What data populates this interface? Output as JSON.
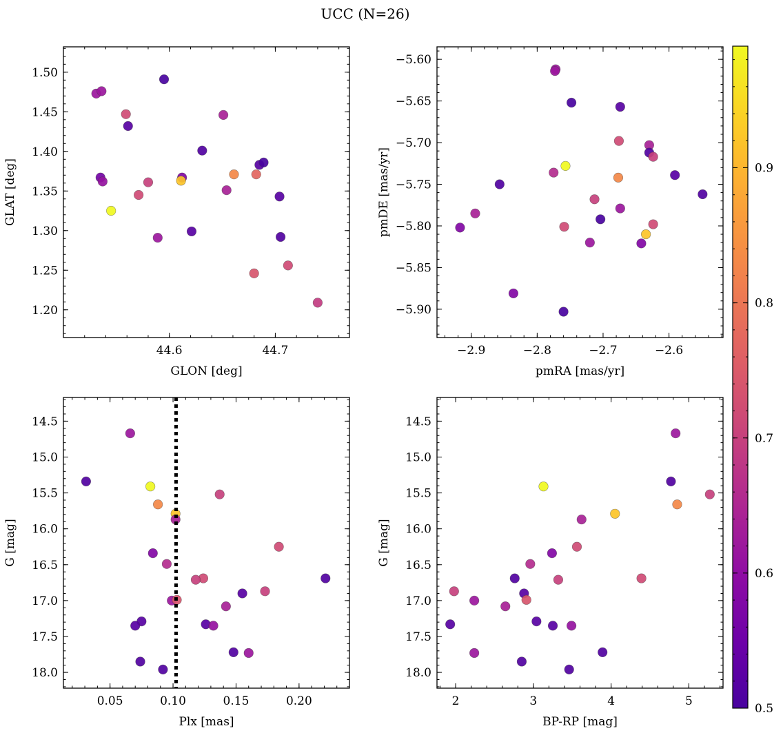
{
  "title": "UCC (N=26)",
  "colorbar": {
    "min": 0.5,
    "max": 0.99,
    "ticks": [
      0.5,
      0.6,
      0.7,
      0.8,
      0.9
    ],
    "tick_labels": [
      "0.5",
      "0.6",
      "0.7",
      "0.8",
      "0.9"
    ],
    "colormap": "plasma"
  },
  "chart_data": [
    {
      "id": "glon_glat",
      "type": "scatter",
      "xlabel": "GLON [deg]",
      "ylabel": "GLAT [deg]",
      "xlim": [
        44.5,
        44.77
      ],
      "ylim": [
        1.165,
        1.532
      ],
      "y_inverted": false,
      "xticks": [
        44.6,
        44.7
      ],
      "xtick_labels": [
        "44.6",
        "44.7"
      ],
      "yticks": [
        1.2,
        1.25,
        1.3,
        1.35,
        1.4,
        1.45,
        1.5
      ],
      "ytick_labels": [
        "1.20",
        "1.25",
        "1.30",
        "1.35",
        "1.40",
        "1.45",
        "1.50"
      ],
      "points": [
        {
          "x": 44.531,
          "y": 1.473,
          "c": 0.62
        },
        {
          "x": 44.536,
          "y": 1.476,
          "c": 0.62
        },
        {
          "x": 44.595,
          "y": 1.491,
          "c": 0.5
        },
        {
          "x": 44.559,
          "y": 1.447,
          "c": 0.72
        },
        {
          "x": 44.561,
          "y": 1.432,
          "c": 0.52
        },
        {
          "x": 44.651,
          "y": 1.446,
          "c": 0.64
        },
        {
          "x": 44.631,
          "y": 1.401,
          "c": 0.51
        },
        {
          "x": 44.535,
          "y": 1.367,
          "c": 0.56
        },
        {
          "x": 44.537,
          "y": 1.362,
          "c": 0.61
        },
        {
          "x": 44.545,
          "y": 1.325,
          "c": 0.99
        },
        {
          "x": 44.58,
          "y": 1.361,
          "c": 0.7
        },
        {
          "x": 44.571,
          "y": 1.345,
          "c": 0.72
        },
        {
          "x": 44.612,
          "y": 1.367,
          "c": 0.58
        },
        {
          "x": 44.611,
          "y": 1.363,
          "c": 0.92
        },
        {
          "x": 44.654,
          "y": 1.351,
          "c": 0.64
        },
        {
          "x": 44.661,
          "y": 1.371,
          "c": 0.83
        },
        {
          "x": 44.682,
          "y": 1.371,
          "c": 0.77
        },
        {
          "x": 44.685,
          "y": 1.383,
          "c": 0.52
        },
        {
          "x": 44.689,
          "y": 1.386,
          "c": 0.5
        },
        {
          "x": 44.704,
          "y": 1.343,
          "c": 0.52
        },
        {
          "x": 44.589,
          "y": 1.291,
          "c": 0.62
        },
        {
          "x": 44.621,
          "y": 1.299,
          "c": 0.52
        },
        {
          "x": 44.705,
          "y": 1.292,
          "c": 0.51
        },
        {
          "x": 44.68,
          "y": 1.246,
          "c": 0.74
        },
        {
          "x": 44.712,
          "y": 1.256,
          "c": 0.72
        },
        {
          "x": 44.74,
          "y": 1.209,
          "c": 0.69
        }
      ]
    },
    {
      "id": "pm",
      "type": "scatter",
      "xlabel": "pmRA [mas/yr]",
      "ylabel": "pmDE [mas/yr]",
      "xlim": [
        -2.952,
        -2.518
      ],
      "ylim": [
        -5.934,
        -5.585
      ],
      "y_inverted": false,
      "xticks": [
        -2.9,
        -2.8,
        -2.7,
        -2.6
      ],
      "xtick_labels": [
        "−2.9",
        "−2.8",
        "−2.7",
        "−2.6"
      ],
      "yticks": [
        -5.9,
        -5.85,
        -5.8,
        -5.75,
        -5.7,
        -5.65,
        -5.6
      ],
      "ytick_labels": [
        "−5.90",
        "−5.85",
        "−5.80",
        "−5.75",
        "−5.70",
        "−5.65",
        "−5.60"
      ],
      "points": [
        {
          "x": -2.772,
          "y": -5.612,
          "c": 0.62
        },
        {
          "x": -2.773,
          "y": -5.614,
          "c": 0.62
        },
        {
          "x": -2.748,
          "y": -5.652,
          "c": 0.5
        },
        {
          "x": -2.674,
          "y": -5.657,
          "c": 0.52
        },
        {
          "x": -2.676,
          "y": -5.698,
          "c": 0.72
        },
        {
          "x": -2.63,
          "y": -5.703,
          "c": 0.64
        },
        {
          "x": -2.63,
          "y": -5.712,
          "c": 0.51
        },
        {
          "x": -2.624,
          "y": -5.717,
          "c": 0.7
        },
        {
          "x": -2.757,
          "y": -5.728,
          "c": 0.99
        },
        {
          "x": -2.775,
          "y": -5.736,
          "c": 0.66
        },
        {
          "x": -2.677,
          "y": -5.742,
          "c": 0.83
        },
        {
          "x": -2.591,
          "y": -5.739,
          "c": 0.52
        },
        {
          "x": -2.857,
          "y": -5.75,
          "c": 0.51
        },
        {
          "x": -2.549,
          "y": -5.762,
          "c": 0.51
        },
        {
          "x": -2.713,
          "y": -5.768,
          "c": 0.7
        },
        {
          "x": -2.674,
          "y": -5.779,
          "c": 0.62
        },
        {
          "x": -2.894,
          "y": -5.785,
          "c": 0.64
        },
        {
          "x": -2.704,
          "y": -5.792,
          "c": 0.5
        },
        {
          "x": -2.759,
          "y": -5.801,
          "c": 0.72
        },
        {
          "x": -2.917,
          "y": -5.802,
          "c": 0.58
        },
        {
          "x": -2.624,
          "y": -5.798,
          "c": 0.72
        },
        {
          "x": -2.635,
          "y": -5.81,
          "c": 0.92
        },
        {
          "x": -2.72,
          "y": -5.82,
          "c": 0.62
        },
        {
          "x": -2.642,
          "y": -5.821,
          "c": 0.58
        },
        {
          "x": -2.836,
          "y": -5.881,
          "c": 0.58
        },
        {
          "x": -2.76,
          "y": -5.903,
          "c": 0.5
        }
      ]
    },
    {
      "id": "plx_g",
      "type": "scatter",
      "xlabel": "Plx [mas]",
      "ylabel": "G [mag]",
      "xlim": [
        0.013,
        0.24
      ],
      "ylim": [
        14.17,
        18.22
      ],
      "y_inverted": true,
      "xticks": [
        0.05,
        0.1,
        0.15,
        0.2
      ],
      "xtick_labels": [
        "0.05",
        "0.10",
        "0.15",
        "0.20"
      ],
      "yticks": [
        14.5,
        15.0,
        15.5,
        16.0,
        16.5,
        17.0,
        17.5,
        18.0
      ],
      "ytick_labels": [
        "14.5",
        "15.0",
        "15.5",
        "16.0",
        "16.5",
        "17.0",
        "17.5",
        "18.0"
      ],
      "vline": 0.1024,
      "points": [
        {
          "x": 0.066,
          "y": 14.67,
          "c": 0.62
        },
        {
          "x": 0.031,
          "y": 15.34,
          "c": 0.51
        },
        {
          "x": 0.082,
          "y": 15.41,
          "c": 0.99
        },
        {
          "x": 0.137,
          "y": 15.52,
          "c": 0.7
        },
        {
          "x": 0.088,
          "y": 15.66,
          "c": 0.83
        },
        {
          "x": 0.102,
          "y": 15.79,
          "c": 0.92
        },
        {
          "x": 0.102,
          "y": 15.87,
          "c": 0.64
        },
        {
          "x": 0.184,
          "y": 16.25,
          "c": 0.72
        },
        {
          "x": 0.084,
          "y": 16.34,
          "c": 0.58
        },
        {
          "x": 0.095,
          "y": 16.49,
          "c": 0.66
        },
        {
          "x": 0.124,
          "y": 16.69,
          "c": 0.72
        },
        {
          "x": 0.118,
          "y": 16.71,
          "c": 0.7
        },
        {
          "x": 0.221,
          "y": 16.69,
          "c": 0.51
        },
        {
          "x": 0.155,
          "y": 16.9,
          "c": 0.52
        },
        {
          "x": 0.173,
          "y": 16.87,
          "c": 0.7
        },
        {
          "x": 0.099,
          "y": 17.0,
          "c": 0.62
        },
        {
          "x": 0.103,
          "y": 16.99,
          "c": 0.74
        },
        {
          "x": 0.142,
          "y": 17.08,
          "c": 0.64
        },
        {
          "x": 0.075,
          "y": 17.29,
          "c": 0.52
        },
        {
          "x": 0.07,
          "y": 17.35,
          "c": 0.52
        },
        {
          "x": 0.126,
          "y": 17.33,
          "c": 0.52
        },
        {
          "x": 0.132,
          "y": 17.35,
          "c": 0.61
        },
        {
          "x": 0.148,
          "y": 17.72,
          "c": 0.51
        },
        {
          "x": 0.16,
          "y": 17.73,
          "c": 0.62
        },
        {
          "x": 0.074,
          "y": 17.85,
          "c": 0.51
        },
        {
          "x": 0.092,
          "y": 17.96,
          "c": 0.51
        }
      ]
    },
    {
      "id": "cmd",
      "type": "scatter",
      "xlabel": "BP-RP [mag]",
      "ylabel": "G [mag]",
      "xlim": [
        1.76,
        5.44
      ],
      "ylim": [
        14.17,
        18.22
      ],
      "y_inverted": true,
      "xticks": [
        2,
        3,
        4,
        5
      ],
      "xtick_labels": [
        "2",
        "3",
        "4",
        "5"
      ],
      "yticks": [
        14.5,
        15.0,
        15.5,
        16.0,
        16.5,
        17.0,
        17.5,
        18.0
      ],
      "ytick_labels": [
        "14.5",
        "15.0",
        "15.5",
        "16.0",
        "16.5",
        "17.0",
        "17.5",
        "18.0"
      ],
      "points": [
        {
          "x": 4.83,
          "y": 14.67,
          "c": 0.62
        },
        {
          "x": 4.77,
          "y": 15.34,
          "c": 0.51
        },
        {
          "x": 3.13,
          "y": 15.41,
          "c": 0.99
        },
        {
          "x": 5.27,
          "y": 15.52,
          "c": 0.7
        },
        {
          "x": 4.85,
          "y": 15.66,
          "c": 0.83
        },
        {
          "x": 4.05,
          "y": 15.79,
          "c": 0.92
        },
        {
          "x": 3.62,
          "y": 15.87,
          "c": 0.64
        },
        {
          "x": 3.56,
          "y": 16.25,
          "c": 0.72
        },
        {
          "x": 3.24,
          "y": 16.34,
          "c": 0.58
        },
        {
          "x": 2.96,
          "y": 16.49,
          "c": 0.66
        },
        {
          "x": 4.39,
          "y": 16.69,
          "c": 0.72
        },
        {
          "x": 3.32,
          "y": 16.71,
          "c": 0.7
        },
        {
          "x": 2.76,
          "y": 16.69,
          "c": 0.51
        },
        {
          "x": 2.88,
          "y": 16.9,
          "c": 0.52
        },
        {
          "x": 1.98,
          "y": 16.87,
          "c": 0.7
        },
        {
          "x": 2.24,
          "y": 17.0,
          "c": 0.62
        },
        {
          "x": 2.91,
          "y": 16.99,
          "c": 0.74
        },
        {
          "x": 2.64,
          "y": 17.08,
          "c": 0.64
        },
        {
          "x": 3.04,
          "y": 17.29,
          "c": 0.52
        },
        {
          "x": 1.93,
          "y": 17.33,
          "c": 0.52
        },
        {
          "x": 3.25,
          "y": 17.35,
          "c": 0.52
        },
        {
          "x": 3.49,
          "y": 17.35,
          "c": 0.61
        },
        {
          "x": 3.89,
          "y": 17.72,
          "c": 0.51
        },
        {
          "x": 2.24,
          "y": 17.73,
          "c": 0.62
        },
        {
          "x": 2.85,
          "y": 17.85,
          "c": 0.51
        },
        {
          "x": 3.46,
          "y": 17.96,
          "c": 0.51
        }
      ]
    }
  ]
}
